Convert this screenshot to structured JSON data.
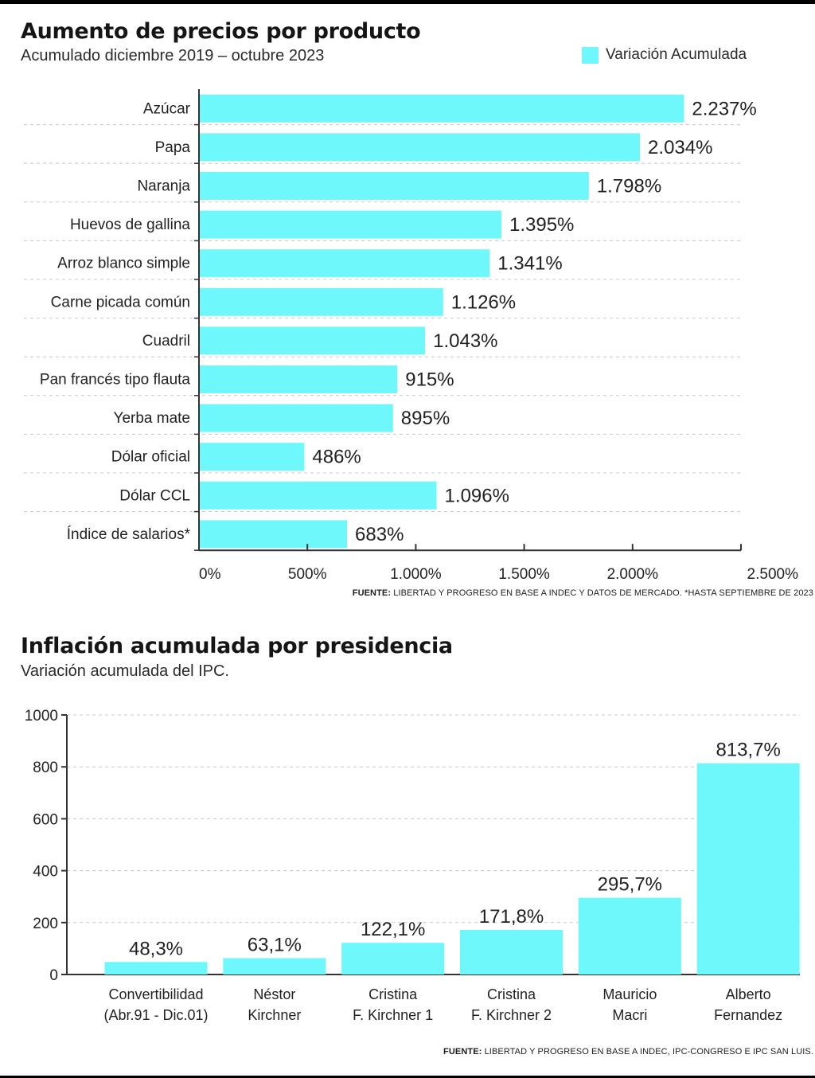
{
  "colors": {
    "bar": "#6ff8fb",
    "grid": "#c8c8c8",
    "axis": "#333333",
    "text": "#222222"
  },
  "chart_data": [
    {
      "type": "bar",
      "orientation": "horizontal",
      "title": "Aumento de precios por producto",
      "subtitle": "Acumulado diciembre 2019 – octubre 2023",
      "legend": {
        "label": "Variación Acumulada",
        "position": "top-right"
      },
      "categories": [
        "Azúcar",
        "Papa",
        "Naranja",
        "Huevos de gallina",
        "Arroz blanco simple",
        "Carne picada común",
        "Cuadril",
        "Pan francés tipo flauta",
        "Yerba mate",
        "Dólar oficial",
        "Dólar CCL",
        "Índice de salarios*"
      ],
      "values": [
        2237,
        2034,
        1798,
        1395,
        1341,
        1126,
        1043,
        915,
        895,
        486,
        1096,
        683
      ],
      "value_labels": [
        "2.237%",
        "2.034%",
        "1.798%",
        "1.395%",
        "1.341%",
        "1.126%",
        "1.043%",
        "915%",
        "895%",
        "486%",
        "1.096%",
        "683%"
      ],
      "xlim": [
        0,
        2500
      ],
      "xticks": [
        0,
        500,
        1000,
        1500,
        2000,
        2500
      ],
      "xtick_labels": [
        "0%",
        "500%",
        "1.000%",
        "1.500%",
        "2.000%",
        "2.500%"
      ],
      "grid": true,
      "source_label": "FUENTE:",
      "source_text": " LIBERTAD Y PROGRESO EN BASE A INDEC Y DATOS DE MERCADO. *HASTA SEPTIEMBRE DE 2023"
    },
    {
      "type": "bar",
      "orientation": "vertical",
      "title": "Inflación acumulada por presidencia",
      "subtitle": "Variación acumulada del IPC.",
      "categories": [
        [
          "Convertibilidad",
          "(Abr.91 - Dic.01)"
        ],
        [
          "Néstor",
          "Kirchner"
        ],
        [
          "Cristina",
          "F. Kirchner 1"
        ],
        [
          "Cristina",
          "F. Kirchner 2"
        ],
        [
          "Mauricio",
          "Macri"
        ],
        [
          "Alberto",
          "Fernandez"
        ]
      ],
      "values": [
        48.3,
        63.1,
        122.1,
        171.8,
        295.7,
        813.7
      ],
      "value_labels": [
        "48,3%",
        "63,1%",
        "122,1%",
        "171,8%",
        "295,7%",
        "813,7%"
      ],
      "ylim": [
        0,
        1000
      ],
      "yticks": [
        0,
        200,
        400,
        600,
        800,
        1000
      ],
      "ytick_labels": [
        "0",
        "200",
        "400",
        "600",
        "800",
        "1000"
      ],
      "grid": true,
      "source_label": "FUENTE:",
      "source_text": " LIBERTAD Y PROGRESO EN BASE A INDEC, IPC-CONGRESO E IPC SAN LUIS."
    }
  ]
}
